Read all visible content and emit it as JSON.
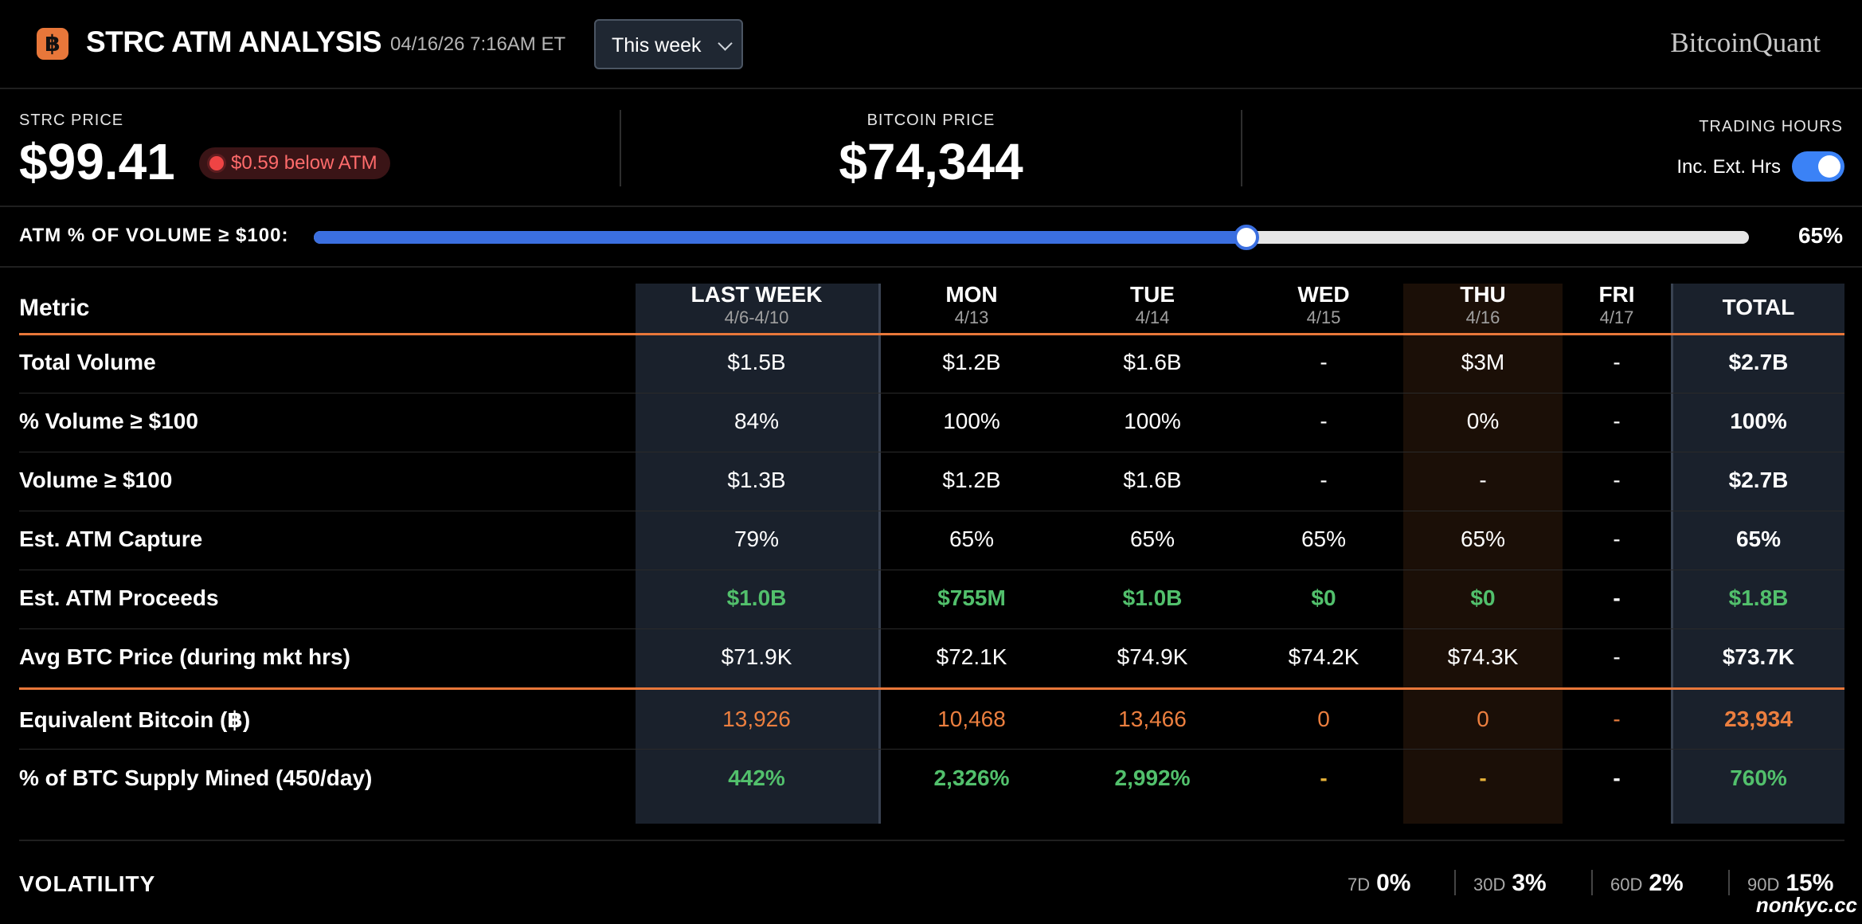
{
  "header": {
    "logo_glyph": "฿",
    "title": "STRC ATM ANALYSIS",
    "timestamp": "04/16/26 7:16AM ET",
    "period_select": "This week",
    "brand": "BitcoinQuant"
  },
  "prices": {
    "strc_label": "STRC PRICE",
    "strc_value": "$99.41",
    "atm_badge": "$0.59 below ATM",
    "btc_label": "BITCOIN PRICE",
    "btc_value": "$74,344",
    "trading_hours_label": "TRADING HOURS",
    "toggle_label": "Inc. Ext. Hrs",
    "toggle_on": true
  },
  "slider": {
    "label": "ATM % OF VOLUME ≥ $100:",
    "value_text": "65%",
    "value": 65
  },
  "table": {
    "metric_header": "Metric",
    "columns": [
      {
        "label": "LAST WEEK",
        "sub": "4/6-4/10"
      },
      {
        "label": "MON",
        "sub": "4/13"
      },
      {
        "label": "TUE",
        "sub": "4/14"
      },
      {
        "label": "WED",
        "sub": "4/15"
      },
      {
        "label": "THU",
        "sub": "4/16"
      },
      {
        "label": "FRI",
        "sub": "4/17"
      },
      {
        "label": "TOTAL",
        "sub": ""
      }
    ],
    "rows": [
      {
        "label": "Total Volume",
        "values": [
          "$1.5B",
          "$1.2B",
          "$1.6B",
          "-",
          "$3M",
          "-",
          "$2.7B"
        ]
      },
      {
        "label": "% Volume ≥ $100",
        "values": [
          "84%",
          "100%",
          "100%",
          "-",
          "0%",
          "-",
          "100%"
        ]
      },
      {
        "label": "Volume ≥ $100",
        "values": [
          "$1.3B",
          "$1.2B",
          "$1.6B",
          "-",
          "-",
          "-",
          "$2.7B"
        ]
      },
      {
        "label": "Est. ATM Capture",
        "values": [
          "79%",
          "65%",
          "65%",
          "65%",
          "65%",
          "-",
          "65%"
        ]
      },
      {
        "label": "Est. ATM Proceeds",
        "values": [
          "$1.0B",
          "$755M",
          "$1.0B",
          "$0",
          "$0",
          "-",
          "$1.8B"
        ]
      },
      {
        "label": "Avg BTC Price (during mkt hrs)",
        "values": [
          "$71.9K",
          "$72.1K",
          "$74.9K",
          "$74.2K",
          "$74.3K",
          "-",
          "$73.7K"
        ]
      },
      {
        "label": "Equivalent Bitcoin (฿)",
        "values": [
          "13,926",
          "10,468",
          "13,466",
          "0",
          "0",
          "-",
          "23,934"
        ]
      },
      {
        "label": "% of BTC Supply Mined (450/day)",
        "values": [
          "442%",
          "2,326%",
          "2,992%",
          "-",
          "-",
          "-",
          "760%"
        ]
      }
    ]
  },
  "volatility": {
    "title": "VOLATILITY",
    "items": [
      {
        "period": "7D",
        "value": "0%"
      },
      {
        "period": "30D",
        "value": "3%"
      },
      {
        "period": "60D",
        "value": "2%"
      },
      {
        "period": "90D",
        "value": "15%"
      }
    ]
  },
  "watermark": "nonkyc.cc",
  "colors": {
    "accent_orange": "#e8773a",
    "slider_blue": "#3b6fe0",
    "positive_green": "#52c06c",
    "alert_red": "#ef4444"
  }
}
